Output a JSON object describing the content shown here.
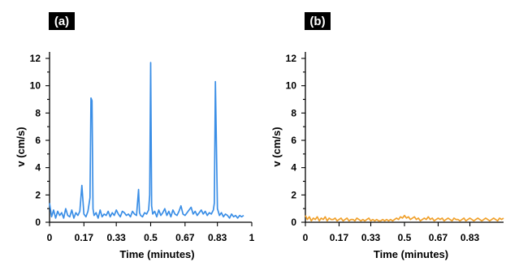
{
  "chart_data": [
    {
      "type": "line",
      "panel_label": "(a)",
      "xlabel": "Time (minutes)",
      "ylabel": "v (cm/s)",
      "xlim": [
        0,
        1
      ],
      "ylim": [
        0,
        12
      ],
      "x_ticks": [
        0,
        0.17,
        0.33,
        0.5,
        0.67,
        0.83,
        1
      ],
      "x_tick_labels": [
        "0",
        "0.17",
        "0.33",
        "0.5",
        "0.67",
        "0.83",
        "1"
      ],
      "y_ticks": [
        0,
        2,
        4,
        6,
        8,
        10,
        12
      ],
      "y_tick_labels": [
        "0",
        "2",
        "4",
        "6",
        "8",
        "10",
        "12"
      ],
      "grid": false,
      "series": [
        {
          "color": "#3a8ee6",
          "x": [
            0,
            0.01,
            0.02,
            0.03,
            0.04,
            0.05,
            0.06,
            0.07,
            0.08,
            0.09,
            0.1,
            0.11,
            0.12,
            0.13,
            0.14,
            0.15,
            0.16,
            0.17,
            0.18,
            0.19,
            0.2,
            0.205,
            0.21,
            0.215,
            0.22,
            0.23,
            0.24,
            0.25,
            0.26,
            0.27,
            0.28,
            0.29,
            0.3,
            0.31,
            0.32,
            0.33,
            0.34,
            0.35,
            0.36,
            0.37,
            0.38,
            0.39,
            0.4,
            0.41,
            0.42,
            0.43,
            0.44,
            0.445,
            0.45,
            0.46,
            0.47,
            0.48,
            0.49,
            0.495,
            0.5,
            0.505,
            0.51,
            0.52,
            0.53,
            0.54,
            0.55,
            0.56,
            0.57,
            0.58,
            0.59,
            0.6,
            0.61,
            0.62,
            0.63,
            0.64,
            0.65,
            0.66,
            0.67,
            0.68,
            0.69,
            0.7,
            0.71,
            0.72,
            0.73,
            0.74,
            0.75,
            0.76,
            0.77,
            0.78,
            0.79,
            0.8,
            0.81,
            0.815,
            0.82,
            0.83,
            0.84,
            0.85,
            0.86,
            0.87,
            0.88,
            0.89,
            0.9,
            0.91,
            0.92,
            0.93,
            0.94,
            0.95,
            0.96
          ],
          "y": [
            1.4,
            0.4,
            0.9,
            0.3,
            0.8,
            0.5,
            0.7,
            0.3,
            1.0,
            0.5,
            0.4,
            0.9,
            0.3,
            0.7,
            0.5,
            0.8,
            2.7,
            0.6,
            0.4,
            0.8,
            1.8,
            9.1,
            8.9,
            1.0,
            0.5,
            0.7,
            0.3,
            0.9,
            0.4,
            0.6,
            0.5,
            0.8,
            0.4,
            0.7,
            0.5,
            0.9,
            0.6,
            0.4,
            0.8,
            0.7,
            0.5,
            0.6,
            0.4,
            0.8,
            0.6,
            0.5,
            2.4,
            0.7,
            0.5,
            0.4,
            0.7,
            0.6,
            0.9,
            2.0,
            11.7,
            1.2,
            0.6,
            0.8,
            0.4,
            0.9,
            0.5,
            0.7,
            1.0,
            0.5,
            0.8,
            0.4,
            0.9,
            0.6,
            0.5,
            0.8,
            1.2,
            0.6,
            0.5,
            0.7,
            0.9,
            1.1,
            0.6,
            0.8,
            0.5,
            0.7,
            0.9,
            0.6,
            0.8,
            0.5,
            0.7,
            0.6,
            0.9,
            1.4,
            10.3,
            1.0,
            0.5,
            0.7,
            0.4,
            0.6,
            0.5,
            0.3,
            0.6,
            0.4,
            0.5,
            0.3,
            0.5,
            0.4,
            0.5
          ]
        }
      ]
    },
    {
      "type": "line",
      "panel_label": "(b)",
      "xlabel": "Time (minutes)",
      "ylabel": "v (cm/s)",
      "xlim": [
        0,
        1
      ],
      "ylim": [
        0,
        12
      ],
      "x_ticks": [
        0,
        0.17,
        0.33,
        0.5,
        0.67,
        0.83
      ],
      "x_tick_labels": [
        "0",
        "0.17",
        "0.33",
        "0.5",
        "0.67",
        "0.83"
      ],
      "y_ticks": [
        0,
        2,
        4,
        6,
        8,
        10,
        12
      ],
      "y_tick_labels": [
        "0",
        "2",
        "4",
        "6",
        "8",
        "10",
        "12"
      ],
      "grid": false,
      "series": [
        {
          "color": "#f0a02a",
          "x": [
            0,
            0.01,
            0.02,
            0.03,
            0.04,
            0.05,
            0.06,
            0.07,
            0.08,
            0.09,
            0.1,
            0.11,
            0.12,
            0.13,
            0.14,
            0.15,
            0.16,
            0.17,
            0.18,
            0.19,
            0.2,
            0.21,
            0.22,
            0.23,
            0.24,
            0.25,
            0.26,
            0.27,
            0.28,
            0.29,
            0.3,
            0.31,
            0.32,
            0.33,
            0.34,
            0.35,
            0.36,
            0.37,
            0.38,
            0.39,
            0.4,
            0.41,
            0.42,
            0.43,
            0.44,
            0.45,
            0.46,
            0.47,
            0.48,
            0.49,
            0.5,
            0.51,
            0.52,
            0.53,
            0.54,
            0.55,
            0.56,
            0.57,
            0.58,
            0.59,
            0.6,
            0.61,
            0.62,
            0.63,
            0.64,
            0.65,
            0.66,
            0.67,
            0.68,
            0.69,
            0.7,
            0.71,
            0.72,
            0.73,
            0.74,
            0.75,
            0.76,
            0.77,
            0.78,
            0.79,
            0.8,
            0.81,
            0.82,
            0.83,
            0.84,
            0.85,
            0.86,
            0.87,
            0.88,
            0.89,
            0.9,
            0.91,
            0.92,
            0.93,
            0.94,
            0.95,
            0.96,
            0.97,
            0.98,
            0.99,
            1.0
          ],
          "y": [
            0.5,
            0.2,
            0.4,
            0.1,
            0.3,
            0.2,
            0.4,
            0.1,
            0.3,
            0.2,
            0.4,
            0.1,
            0.3,
            0.2,
            0.2,
            0.3,
            0.1,
            0.2,
            0.3,
            0.1,
            0.2,
            0.3,
            0.1,
            0.2,
            0.2,
            0.1,
            0.3,
            0.2,
            0.1,
            0.2,
            0.1,
            0.2,
            0.3,
            0.1,
            0.2,
            0.1,
            0.2,
            0.1,
            0.1,
            0.2,
            0.1,
            0.2,
            0.1,
            0.2,
            0.1,
            0.2,
            0.3,
            0.2,
            0.4,
            0.3,
            0.5,
            0.3,
            0.4,
            0.2,
            0.3,
            0.4,
            0.2,
            0.3,
            0.1,
            0.2,
            0.3,
            0.2,
            0.4,
            0.2,
            0.3,
            0.1,
            0.2,
            0.3,
            0.2,
            0.3,
            0.1,
            0.2,
            0.3,
            0.2,
            0.1,
            0.3,
            0.2,
            0.2,
            0.1,
            0.2,
            0.3,
            0.1,
            0.2,
            0.3,
            0.2,
            0.1,
            0.2,
            0.3,
            0.2,
            0.1,
            0.2,
            0.3,
            0.2,
            0.1,
            0.2,
            0.3,
            0.2,
            0.1,
            0.3,
            0.2,
            0.3
          ]
        }
      ]
    }
  ]
}
